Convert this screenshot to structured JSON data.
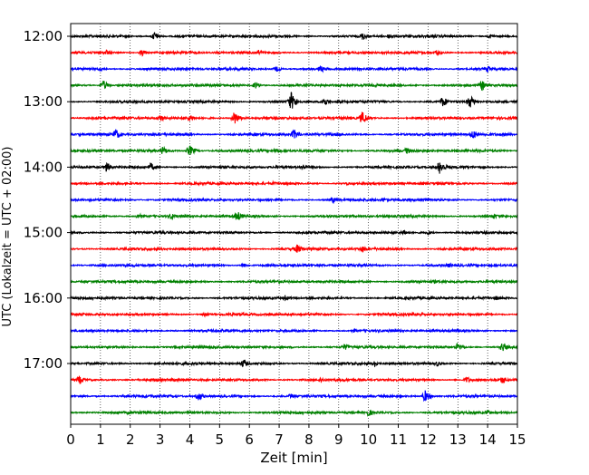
{
  "chart_data": {
    "type": "line",
    "subtype": "helicorder",
    "title": "",
    "xlabel": "Zeit  [min]",
    "ylabel": "UTC (Lokalzeit = UTC + 02:00)",
    "xlim": [
      0,
      15
    ],
    "x_ticks": [
      0,
      1,
      2,
      3,
      4,
      5,
      6,
      7,
      8,
      9,
      10,
      11,
      12,
      13,
      14,
      15
    ],
    "y_tick_labels": [
      "12:00",
      "13:00",
      "14:00",
      "15:00",
      "16:00",
      "17:00"
    ],
    "y_tick_rows": [
      0,
      4,
      8,
      12,
      16,
      20
    ],
    "grid": "vertical dotted",
    "trace_colors": [
      "#000000",
      "#ff0000",
      "#0000ff",
      "#008000"
    ],
    "rows": [
      {
        "start": "12:00",
        "color": "#000000",
        "events": [
          {
            "t": 2.8,
            "amp": 0.45
          },
          {
            "t": 9.8,
            "amp": 0.4
          },
          {
            "t": 10.7,
            "amp": 0.3
          },
          {
            "t": 14.1,
            "amp": 0.25
          }
        ]
      },
      {
        "start": "12:15",
        "color": "#ff0000",
        "events": [
          {
            "t": 1.2,
            "amp": 0.3
          },
          {
            "t": 2.4,
            "amp": 0.35
          },
          {
            "t": 6.3,
            "amp": 0.3
          },
          {
            "t": 12.3,
            "amp": 0.35
          }
        ]
      },
      {
        "start": "12:30",
        "color": "#0000ff",
        "events": [
          {
            "t": 1.0,
            "amp": 0.25
          },
          {
            "t": 6.9,
            "amp": 0.3
          },
          {
            "t": 8.4,
            "amp": 0.35
          },
          {
            "t": 14.0,
            "amp": 0.35
          }
        ]
      },
      {
        "start": "12:45",
        "color": "#008000",
        "events": [
          {
            "t": 1.1,
            "amp": 0.5
          },
          {
            "t": 6.2,
            "amp": 0.35
          },
          {
            "t": 13.8,
            "amp": 0.55
          }
        ]
      },
      {
        "start": "13:00",
        "color": "#000000",
        "events": [
          {
            "t": 7.4,
            "amp": 1.0
          },
          {
            "t": 8.5,
            "amp": 0.5
          },
          {
            "t": 12.5,
            "amp": 0.55
          },
          {
            "t": 13.4,
            "amp": 0.7
          }
        ]
      },
      {
        "start": "13:15",
        "color": "#ff0000",
        "events": [
          {
            "t": 3.0,
            "amp": 0.4
          },
          {
            "t": 4.0,
            "amp": 0.35
          },
          {
            "t": 5.5,
            "amp": 0.7
          },
          {
            "t": 9.8,
            "amp": 0.7
          }
        ]
      },
      {
        "start": "13:30",
        "color": "#0000ff",
        "events": [
          {
            "t": 1.5,
            "amp": 0.6
          },
          {
            "t": 7.5,
            "amp": 0.55
          },
          {
            "t": 13.5,
            "amp": 0.5
          }
        ]
      },
      {
        "start": "13:45",
        "color": "#008000",
        "events": [
          {
            "t": 3.1,
            "amp": 0.45
          },
          {
            "t": 4.0,
            "amp": 0.55
          },
          {
            "t": 6.9,
            "amp": 0.3
          },
          {
            "t": 11.3,
            "amp": 0.35
          }
        ]
      },
      {
        "start": "14:00",
        "color": "#000000",
        "events": [
          {
            "t": 1.2,
            "amp": 0.5
          },
          {
            "t": 2.7,
            "amp": 0.45
          },
          {
            "t": 7.8,
            "amp": 0.3
          },
          {
            "t": 12.4,
            "amp": 0.75
          }
        ]
      },
      {
        "start": "14:15",
        "color": "#ff0000",
        "events": [
          {
            "t": 6.8,
            "amp": 0.2
          },
          {
            "t": 9.3,
            "amp": 0.15
          }
        ]
      },
      {
        "start": "14:30",
        "color": "#0000ff",
        "events": [
          {
            "t": 8.8,
            "amp": 0.35
          },
          {
            "t": 10.5,
            "amp": 0.25
          }
        ]
      },
      {
        "start": "14:45",
        "color": "#008000",
        "events": [
          {
            "t": 2.3,
            "amp": 0.35
          },
          {
            "t": 3.4,
            "amp": 0.4
          },
          {
            "t": 5.6,
            "amp": 0.55
          },
          {
            "t": 14.2,
            "amp": 0.3
          }
        ]
      },
      {
        "start": "15:00",
        "color": "#000000",
        "events": [
          {
            "t": 11.2,
            "amp": 0.3
          },
          {
            "t": 12.0,
            "amp": 0.25
          }
        ]
      },
      {
        "start": "15:15",
        "color": "#ff0000",
        "events": [
          {
            "t": 7.6,
            "amp": 0.5
          },
          {
            "t": 9.8,
            "amp": 0.35
          }
        ]
      },
      {
        "start": "15:30",
        "color": "#0000ff",
        "events": [
          {
            "t": 5.8,
            "amp": 0.25
          },
          {
            "t": 12.7,
            "amp": 0.25
          }
        ]
      },
      {
        "start": "15:45",
        "color": "#008000",
        "events": [
          {
            "t": 7.0,
            "amp": 0.2
          },
          {
            "t": 12.2,
            "amp": 0.2
          }
        ]
      },
      {
        "start": "16:00",
        "color": "#000000",
        "events": [
          {
            "t": 7.2,
            "amp": 0.3
          },
          {
            "t": 14.3,
            "amp": 0.25
          }
        ]
      },
      {
        "start": "16:15",
        "color": "#ff0000",
        "events": [
          {
            "t": 4.5,
            "amp": 0.2
          },
          {
            "t": 11.8,
            "amp": 0.25
          }
        ]
      },
      {
        "start": "16:30",
        "color": "#0000ff",
        "events": [
          {
            "t": 9.5,
            "amp": 0.2
          },
          {
            "t": 13.0,
            "amp": 0.25
          }
        ]
      },
      {
        "start": "16:45",
        "color": "#008000",
        "events": [
          {
            "t": 9.2,
            "amp": 0.35
          },
          {
            "t": 13.0,
            "amp": 0.45
          },
          {
            "t": 14.5,
            "amp": 0.5
          }
        ]
      },
      {
        "start": "17:00",
        "color": "#000000",
        "events": [
          {
            "t": 5.8,
            "amp": 0.45
          },
          {
            "t": 10.2,
            "amp": 0.35
          },
          {
            "t": 12.3,
            "amp": 0.3
          }
        ]
      },
      {
        "start": "17:15",
        "color": "#ff0000",
        "events": [
          {
            "t": 0.3,
            "amp": 0.45
          },
          {
            "t": 8.4,
            "amp": 0.3
          },
          {
            "t": 13.3,
            "amp": 0.35
          },
          {
            "t": 14.5,
            "amp": 0.4
          }
        ]
      },
      {
        "start": "17:30",
        "color": "#0000ff",
        "events": [
          {
            "t": 4.3,
            "amp": 0.45
          },
          {
            "t": 11.9,
            "amp": 0.6
          },
          {
            "t": 7.4,
            "amp": 0.3
          }
        ]
      },
      {
        "start": "17:45",
        "color": "#008000",
        "events": [
          {
            "t": 4.0,
            "amp": 0.25
          },
          {
            "t": 10.0,
            "amp": 0.4
          },
          {
            "t": 14.0,
            "amp": 0.3
          }
        ]
      }
    ]
  }
}
